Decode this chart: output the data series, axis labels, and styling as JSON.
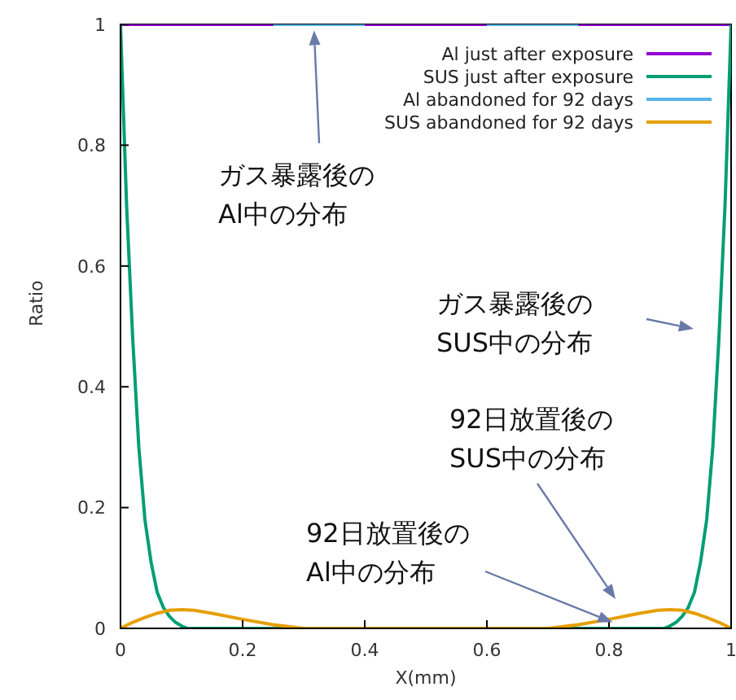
{
  "chart_data": {
    "type": "line",
    "xlabel": "X(mm)",
    "ylabel": "Ratio",
    "xlim": [
      0,
      1
    ],
    "ylim": [
      0,
      1
    ],
    "xticks": [
      0,
      0.2,
      0.4,
      0.6,
      0.8,
      1
    ],
    "yticks": [
      0,
      0.2,
      0.4,
      0.6,
      0.8,
      1
    ],
    "grid": false,
    "legend": "top right",
    "marker": "none",
    "line_style": "solid",
    "series": [
      {
        "name": "Al just after exposure",
        "color": "#9400d3",
        "x": [
          0,
          0.1,
          0.2,
          0.45,
          0.5,
          0.55,
          0.8,
          0.9,
          1
        ],
        "values": [
          1,
          1,
          1,
          1,
          1,
          1,
          1,
          1,
          1
        ]
      },
      {
        "name": "SUS just after exposure",
        "color": "#009e73",
        "x": [
          0,
          0.005,
          0.01,
          0.02,
          0.03,
          0.04,
          0.05,
          0.06,
          0.07,
          0.08,
          0.09,
          0.1,
          0.11,
          0.5,
          0.89,
          0.9,
          0.91,
          0.92,
          0.93,
          0.94,
          0.95,
          0.96,
          0.97,
          0.98,
          0.99,
          0.995,
          1
        ],
        "values": [
          1,
          0.85,
          0.7,
          0.48,
          0.3,
          0.18,
          0.11,
          0.06,
          0.035,
          0.02,
          0.01,
          0.004,
          0,
          0,
          0,
          0.004,
          0.01,
          0.02,
          0.035,
          0.06,
          0.11,
          0.18,
          0.3,
          0.48,
          0.7,
          0.85,
          1
        ]
      },
      {
        "name": "Al abandoned for 92 days",
        "color": "#56b4e9",
        "x": [
          0.25,
          0.4,
          0.5,
          0.6,
          0.75
        ],
        "values": [
          1,
          1,
          null,
          1,
          1
        ]
      },
      {
        "name": "SUS abandoned for 92 days",
        "color": "#e69f00",
        "x": [
          0,
          0.02,
          0.04,
          0.06,
          0.08,
          0.1,
          0.12,
          0.15,
          0.2,
          0.25,
          0.3,
          0.5,
          0.7,
          0.75,
          0.8,
          0.85,
          0.88,
          0.9,
          0.92,
          0.94,
          0.96,
          0.98,
          1
        ],
        "values": [
          0,
          0.01,
          0.018,
          0.025,
          0.03,
          0.031,
          0.03,
          0.025,
          0.015,
          0.006,
          0,
          0,
          0,
          0.006,
          0.015,
          0.025,
          0.03,
          0.031,
          0.03,
          0.025,
          0.018,
          0.01,
          0
        ]
      }
    ],
    "annotations": [
      {
        "text": "ガス暴露後の\nAl中の分布",
        "x": 0.317,
        "y": 0.99
      },
      "ガス暴露後の\nSUS中の分布",
      "92日放置後の\nSUS中の分布",
      {
        "text": "92日放置後の\nAl中の分布",
        "x": 0.806,
        "y": 0.01
      }
    ]
  }
}
